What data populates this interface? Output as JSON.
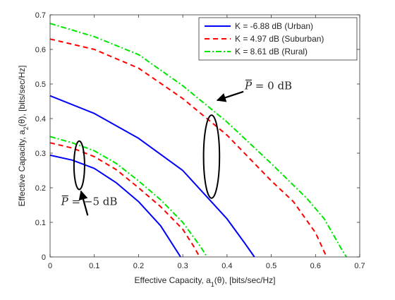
{
  "chart_data": {
    "type": "line",
    "title": "",
    "xlabel": {
      "prefix": "Effective Capacity, a",
      "sub": "1",
      "suffix": "(θ), [bits/sec/Hz]"
    },
    "ylabel": {
      "prefix": "Effective Capacity, a",
      "sub": "2",
      "suffix": "(θ), [bits/sec/Hz]"
    },
    "xlim": [
      0,
      0.7
    ],
    "ylim": [
      0,
      0.7
    ],
    "xticks": [
      0,
      0.1,
      0.2,
      0.3,
      0.4,
      0.5,
      0.6,
      0.7
    ],
    "yticks": [
      0,
      0.1,
      0.2,
      0.3,
      0.4,
      0.5,
      0.6,
      0.7
    ],
    "grid": false,
    "legend_position": "top-right",
    "series": [
      {
        "name": "K = -6.88 dB (Urban)",
        "color": "#0000ff",
        "dash": "solid",
        "groups": [
          {
            "x": [
              0,
              0.05,
              0.1,
              0.15,
              0.2,
              0.25,
              0.28,
              0.295
            ],
            "y": [
              0.294,
              0.28,
              0.256,
              0.214,
              0.16,
              0.09,
              0.03,
              0
            ]
          },
          {
            "x": [
              0,
              0.1,
              0.2,
              0.3,
              0.4,
              0.44,
              0.462
            ],
            "y": [
              0.466,
              0.415,
              0.343,
              0.25,
              0.11,
              0.04,
              0
            ]
          }
        ]
      },
      {
        "name": "K = 4.97 dB (Suburban)",
        "color": "#ff0000",
        "dash": "dashed",
        "groups": [
          {
            "x": [
              0,
              0.05,
              0.1,
              0.15,
              0.2,
              0.25,
              0.3,
              0.325,
              0.338
            ],
            "y": [
              0.33,
              0.315,
              0.29,
              0.252,
              0.2,
              0.145,
              0.08,
              0.03,
              0
            ]
          },
          {
            "x": [
              0,
              0.1,
              0.2,
              0.3,
              0.4,
              0.5,
              0.55,
              0.6,
              0.625
            ],
            "y": [
              0.63,
              0.6,
              0.546,
              0.458,
              0.352,
              0.22,
              0.16,
              0.07,
              0
            ]
          }
        ]
      },
      {
        "name": "K = 8.61 dB (Rural)",
        "color": "#00e600",
        "dash": "dashdot",
        "groups": [
          {
            "x": [
              0,
              0.05,
              0.1,
              0.15,
              0.2,
              0.25,
              0.3,
              0.34,
              0.355
            ],
            "y": [
              0.348,
              0.33,
              0.307,
              0.27,
              0.22,
              0.165,
              0.1,
              0.03,
              0
            ]
          },
          {
            "x": [
              0,
              0.1,
              0.2,
              0.3,
              0.4,
              0.5,
              0.58,
              0.62,
              0.66,
              0.67
            ],
            "y": [
              0.675,
              0.637,
              0.585,
              0.495,
              0.39,
              0.27,
              0.17,
              0.11,
              0.02,
              0
            ]
          }
        ]
      }
    ],
    "annotations": [
      {
        "id": "p0",
        "text_italic": "P",
        "text_rest": " = 0 dB",
        "cx": 0.365,
        "cy": 0.29,
        "rx": 0.018,
        "ry": 0.12,
        "arrow_from": [
          0.437,
          0.478
        ],
        "arrow_to": [
          0.378,
          0.453
        ],
        "text_x": 0.44,
        "text_y": 0.485
      },
      {
        "id": "p5",
        "text_italic": "P",
        "text_rest": " = −5 dB",
        "cx": 0.066,
        "cy": 0.265,
        "rx": 0.012,
        "ry": 0.07,
        "arrow_from": [
          0.085,
          0.12
        ],
        "arrow_to": [
          0.07,
          0.19
        ],
        "text_x": 0.025,
        "text_y": 0.15
      }
    ]
  }
}
